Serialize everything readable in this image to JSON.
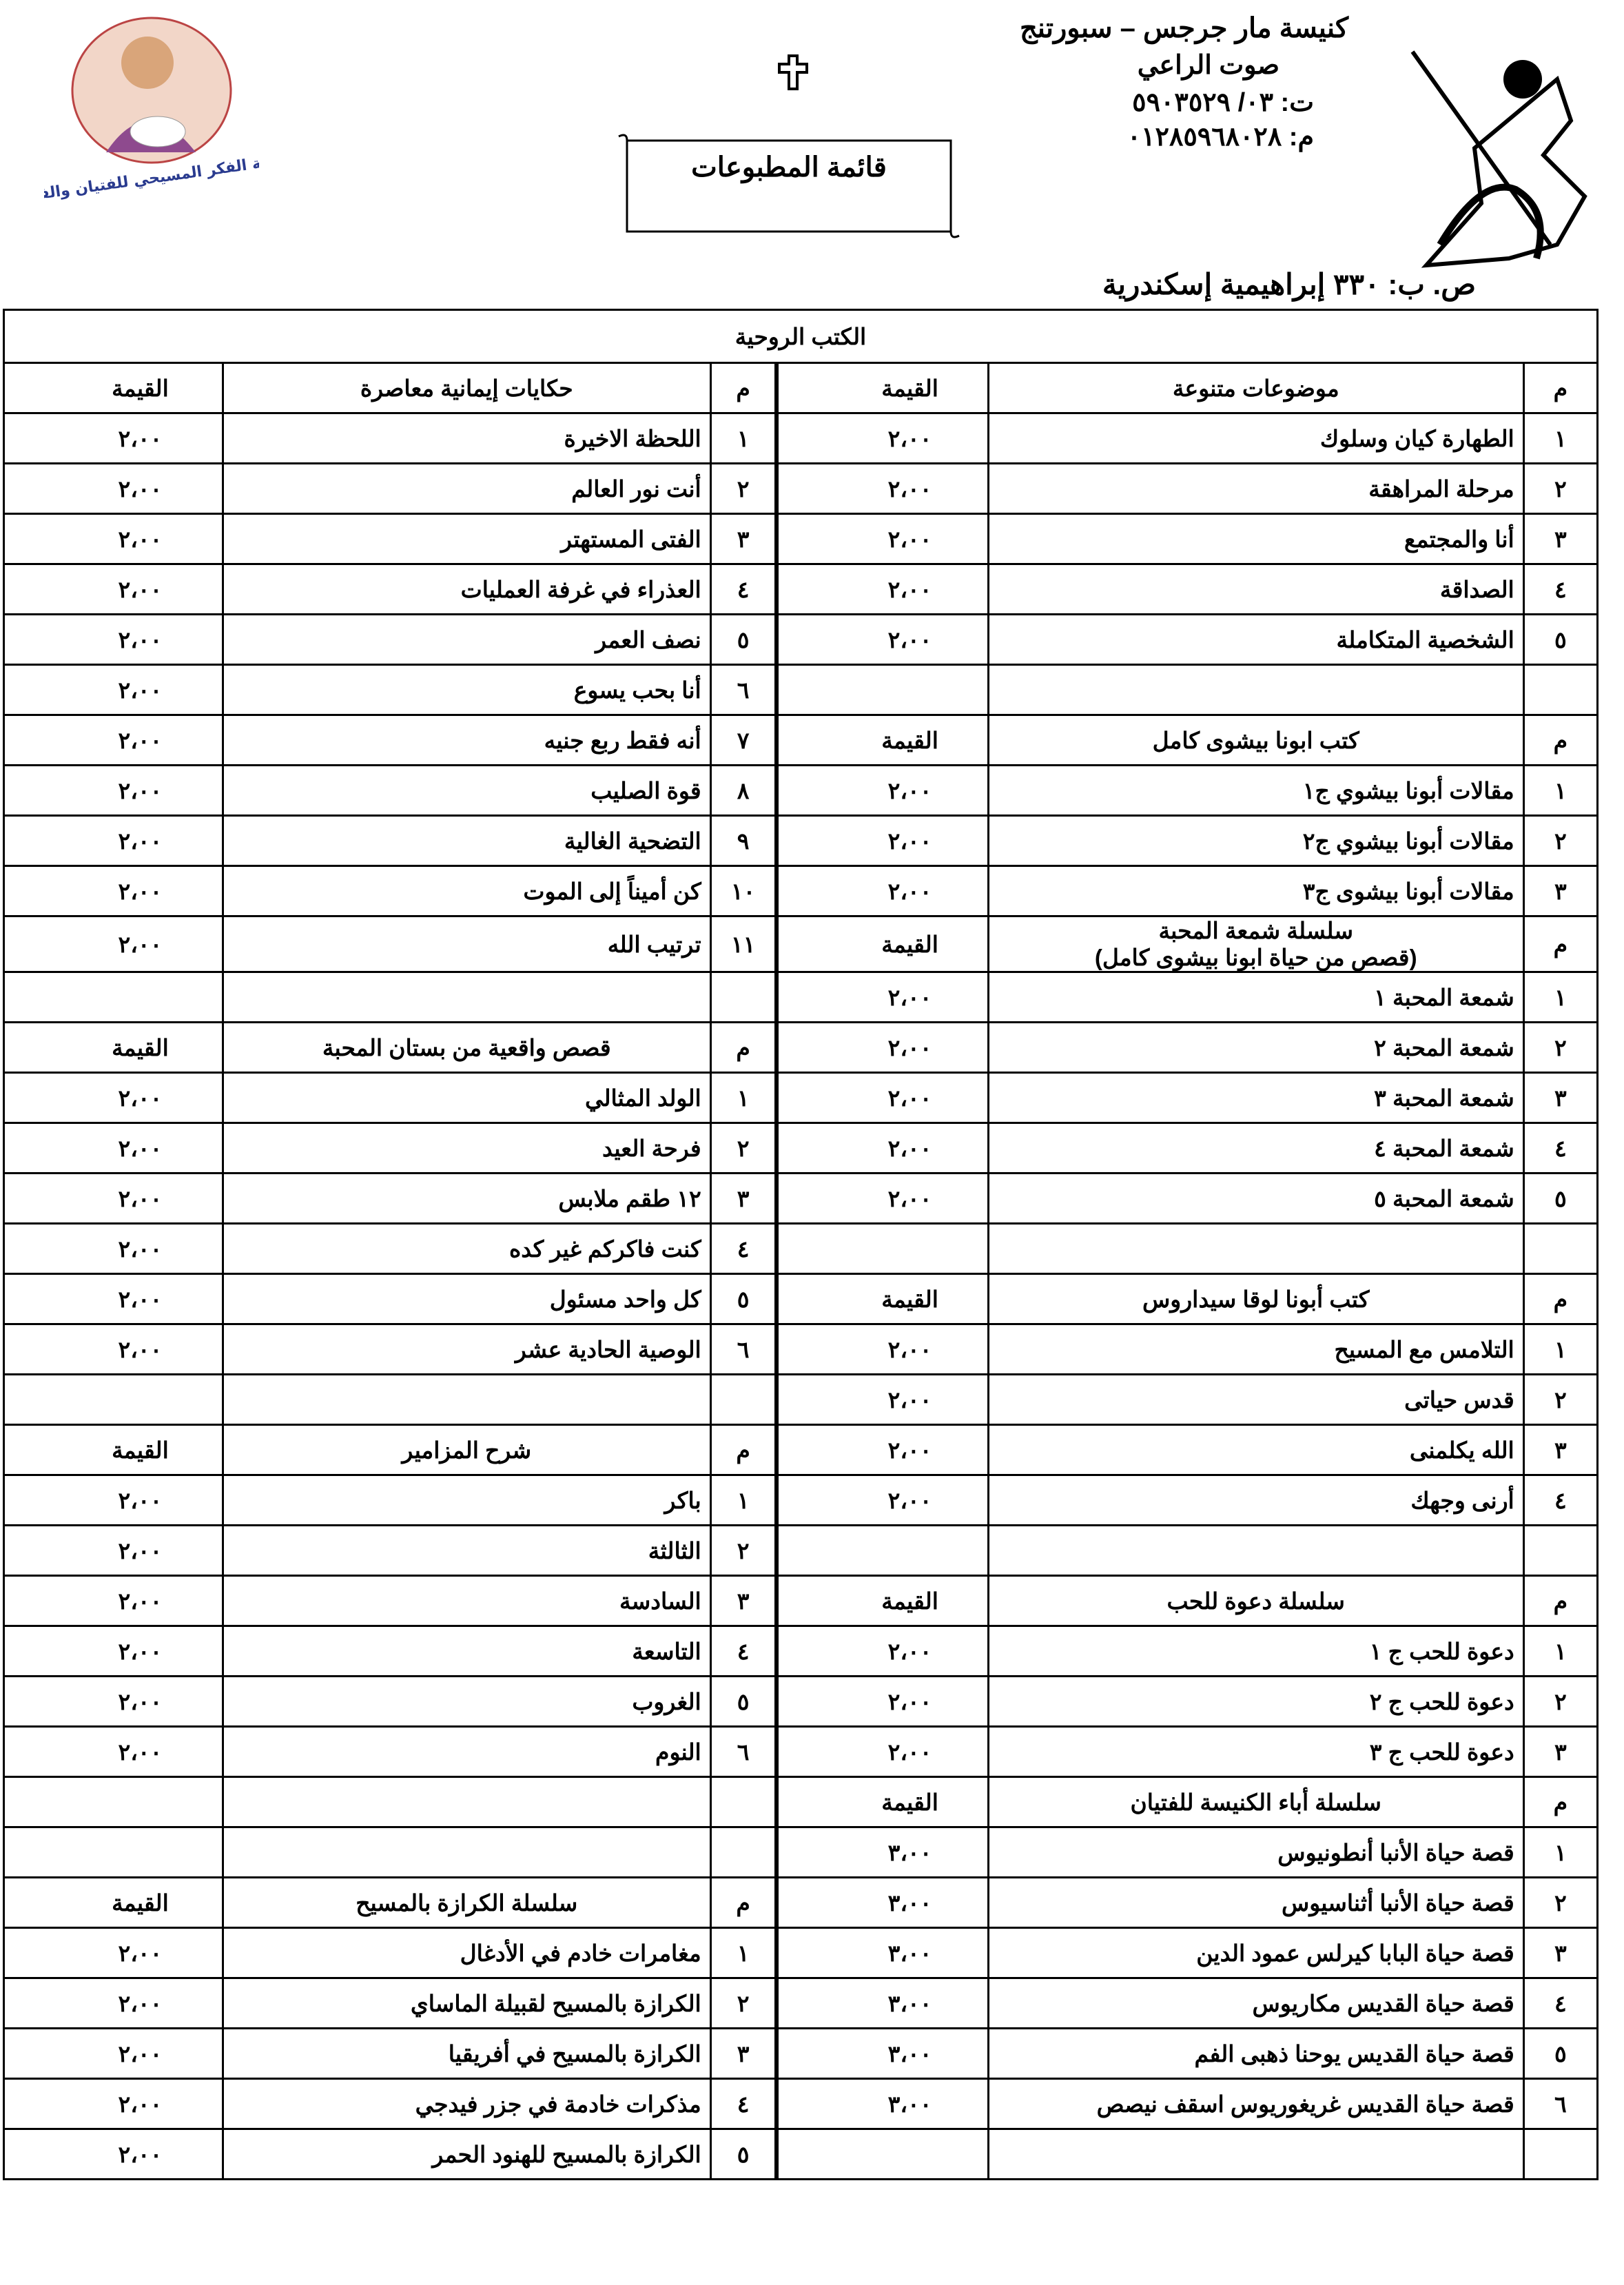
{
  "header": {
    "church": "كنيسة مار جرجس – سبورتنج",
    "publication": "صوت الراعي",
    "phone": "ت: ٠٣/ ٥٩٠٣٥٢٩",
    "mobile": "م: ٠١٢٨٥٩٦٨٠٢٨",
    "title": "قائمة المطبوعات",
    "address": "ص. ب: ٣٣٠ إبراهيمية إسكندرية",
    "logo_text": "رسالة الفكر المسيحي للفتيان والفتيات"
  },
  "table": {
    "title": "الكتب الروحية",
    "rows": [
      {
        "right": [
          "م",
          "موضوعات متنوعة",
          "القيمة"
        ],
        "left": [
          "م",
          "حكايات إيمانية معاصرة",
          "القيمة"
        ]
      },
      {
        "right": [
          "١",
          "الطهارة كيان وسلوك",
          "٢،٠٠"
        ],
        "left": [
          "١",
          "اللحظة الاخيرة",
          "٢،٠٠"
        ]
      },
      {
        "right": [
          "٢",
          "مرحلة المراهقة",
          "٢،٠٠"
        ],
        "left": [
          "٢",
          "أنت نور العالم",
          "٢،٠٠"
        ]
      },
      {
        "right": [
          "٣",
          "أنا والمجتمع",
          "٢،٠٠"
        ],
        "left": [
          "٣",
          "الفتى المستهتر",
          "٢،٠٠"
        ]
      },
      {
        "right": [
          "٤",
          "الصداقة",
          "٢،٠٠"
        ],
        "left": [
          "٤",
          "العذراء في غرفة العمليات",
          "٢،٠٠"
        ]
      },
      {
        "right": [
          "٥",
          "الشخصية المتكاملة",
          "٢،٠٠"
        ],
        "left": [
          "٥",
          "نصف العمر",
          "٢،٠٠"
        ]
      },
      {
        "right": null,
        "left": [
          "٦",
          "أنا بحب يسوع",
          "٢،٠٠"
        ]
      },
      {
        "right": [
          "م",
          "كتب ابونا بيشوى كامل",
          "القيمة"
        ],
        "left": [
          "٧",
          "أنه فقط ربع جنيه",
          "٢،٠٠"
        ]
      },
      {
        "right": [
          "١",
          "مقالات أبونا بيشوي ج١",
          "٢،٠٠"
        ],
        "left": [
          "٨",
          "قوة الصليب",
          "٢،٠٠"
        ]
      },
      {
        "right": [
          "٢",
          "مقالات أبونا بيشوي ج٢",
          "٢،٠٠"
        ],
        "left": [
          "٩",
          "التضحية الغالية",
          "٢،٠٠"
        ]
      },
      {
        "right": [
          "٣",
          "مقالات أبونا بيشوى ج٣",
          "٢،٠٠"
        ],
        "left": [
          "١٠",
          "كن أميناً إلى الموت",
          "٢،٠٠"
        ]
      },
      {
        "right": [
          "م",
          [
            "سلسلة شمعة المحبة",
            "(قصص من حياة ابونا بيشوى كامل)"
          ],
          "القيمة"
        ],
        "left": [
          "١١",
          "ترتيب الله",
          "٢،٠٠"
        ]
      },
      {
        "right": [
          "١",
          "شمعة المحبة ١",
          "٢،٠٠"
        ],
        "left": null
      },
      {
        "right": [
          "٢",
          "شمعة المحبة ٢",
          "٢،٠٠"
        ],
        "left": [
          "م",
          "قصص واقعية من بستان المحبة",
          "القيمة"
        ]
      },
      {
        "right": [
          "٣",
          "شمعة المحبة ٣",
          "٢،٠٠"
        ],
        "left": [
          "١",
          "الولد المثالي",
          "٢،٠٠"
        ]
      },
      {
        "right": [
          "٤",
          "شمعة المحبة ٤",
          "٢،٠٠"
        ],
        "left": [
          "٢",
          "فرحة العيد",
          "٢،٠٠"
        ]
      },
      {
        "right": [
          "٥",
          "شمعة المحبة ٥",
          "٢،٠٠"
        ],
        "left": [
          "٣",
          "١٢ طقم ملابس",
          "٢،٠٠"
        ]
      },
      {
        "right": null,
        "left": [
          "٤",
          "كنت فاكركم غير كده",
          "٢،٠٠"
        ]
      },
      {
        "right": [
          "م",
          "كتب أبونا لوقا سيداروس",
          "القيمة"
        ],
        "left": [
          "٥",
          "كل واحد مسئول",
          "٢،٠٠"
        ]
      },
      {
        "right": [
          "١",
          "التلامس مع المسيح",
          "٢،٠٠"
        ],
        "left": [
          "٦",
          "الوصية الحادية عشر",
          "٢،٠٠"
        ]
      },
      {
        "right": [
          "٢",
          "قدس حياتى",
          "٢،٠٠"
        ],
        "left": null
      },
      {
        "right": [
          "٣",
          "الله يكلمنى",
          "٢،٠٠"
        ],
        "left": [
          "م",
          "شرح المزامير",
          "القيمة"
        ]
      },
      {
        "right": [
          "٤",
          "أرنى وجهك",
          "٢،٠٠"
        ],
        "left": [
          "١",
          "باكر",
          "٢،٠٠"
        ]
      },
      {
        "right": null,
        "left": [
          "٢",
          "الثالثة",
          "٢،٠٠"
        ]
      },
      {
        "right": [
          "م",
          "سلسلة دعوة للحب",
          "القيمة"
        ],
        "left": [
          "٣",
          "السادسة",
          "٢،٠٠"
        ]
      },
      {
        "right": [
          "١",
          "دعوة للحب ج ١",
          "٢،٠٠"
        ],
        "left": [
          "٤",
          "التاسعة",
          "٢،٠٠"
        ]
      },
      {
        "right": [
          "٢",
          "دعوة للحب ج ٢",
          "٢،٠٠"
        ],
        "left": [
          "٥",
          "الغروب",
          "٢،٠٠"
        ]
      },
      {
        "right": [
          "٣",
          "دعوة للحب ج ٣",
          "٢،٠٠"
        ],
        "left": [
          "٦",
          "النوم",
          "٢،٠٠"
        ]
      },
      {
        "right": [
          "م",
          "سلسلة أباء الكنيسة للفتيان",
          "القيمة"
        ],
        "left": null
      },
      {
        "right": [
          "١",
          "قصة حياة الأنبا أنطونيوس",
          "٣،٠٠"
        ],
        "left": null
      },
      {
        "right": [
          "٢",
          "قصة حياة الأنبا أثناسيوس",
          "٣،٠٠"
        ],
        "left": [
          "م",
          "سلسلة الكرازة بالمسيح",
          "القيمة"
        ]
      },
      {
        "right": [
          "٣",
          "قصة حياة البابا كيرلس عمود الدين",
          "٣،٠٠"
        ],
        "left": [
          "١",
          "مغامرات خادم في الأدغال",
          "٢،٠٠"
        ]
      },
      {
        "right": [
          "٤",
          "قصة حياة القديس مكاريوس",
          "٣،٠٠"
        ],
        "left": [
          "٢",
          "الكرازة بالمسيح لقبيلة الماساي",
          "٢،٠٠"
        ]
      },
      {
        "right": [
          "٥",
          "قصة حياة القديس يوحنا ذهبى الفم",
          "٣،٠٠"
        ],
        "left": [
          "٣",
          "الكرازة بالمسيح في أفريقيا",
          "٢،٠٠"
        ]
      },
      {
        "right": [
          "٦",
          "قصة حياة القديس غريغوريوس اسقف نيصص",
          "٣،٠٠"
        ],
        "left": [
          "٤",
          "مذكرات خادمة في جزر فيدجي",
          "٢،٠٠"
        ]
      },
      {
        "right": null,
        "left": [
          "٥",
          "الكرازة بالمسيح للهنود الحمر",
          "٢،٠٠"
        ]
      }
    ]
  }
}
